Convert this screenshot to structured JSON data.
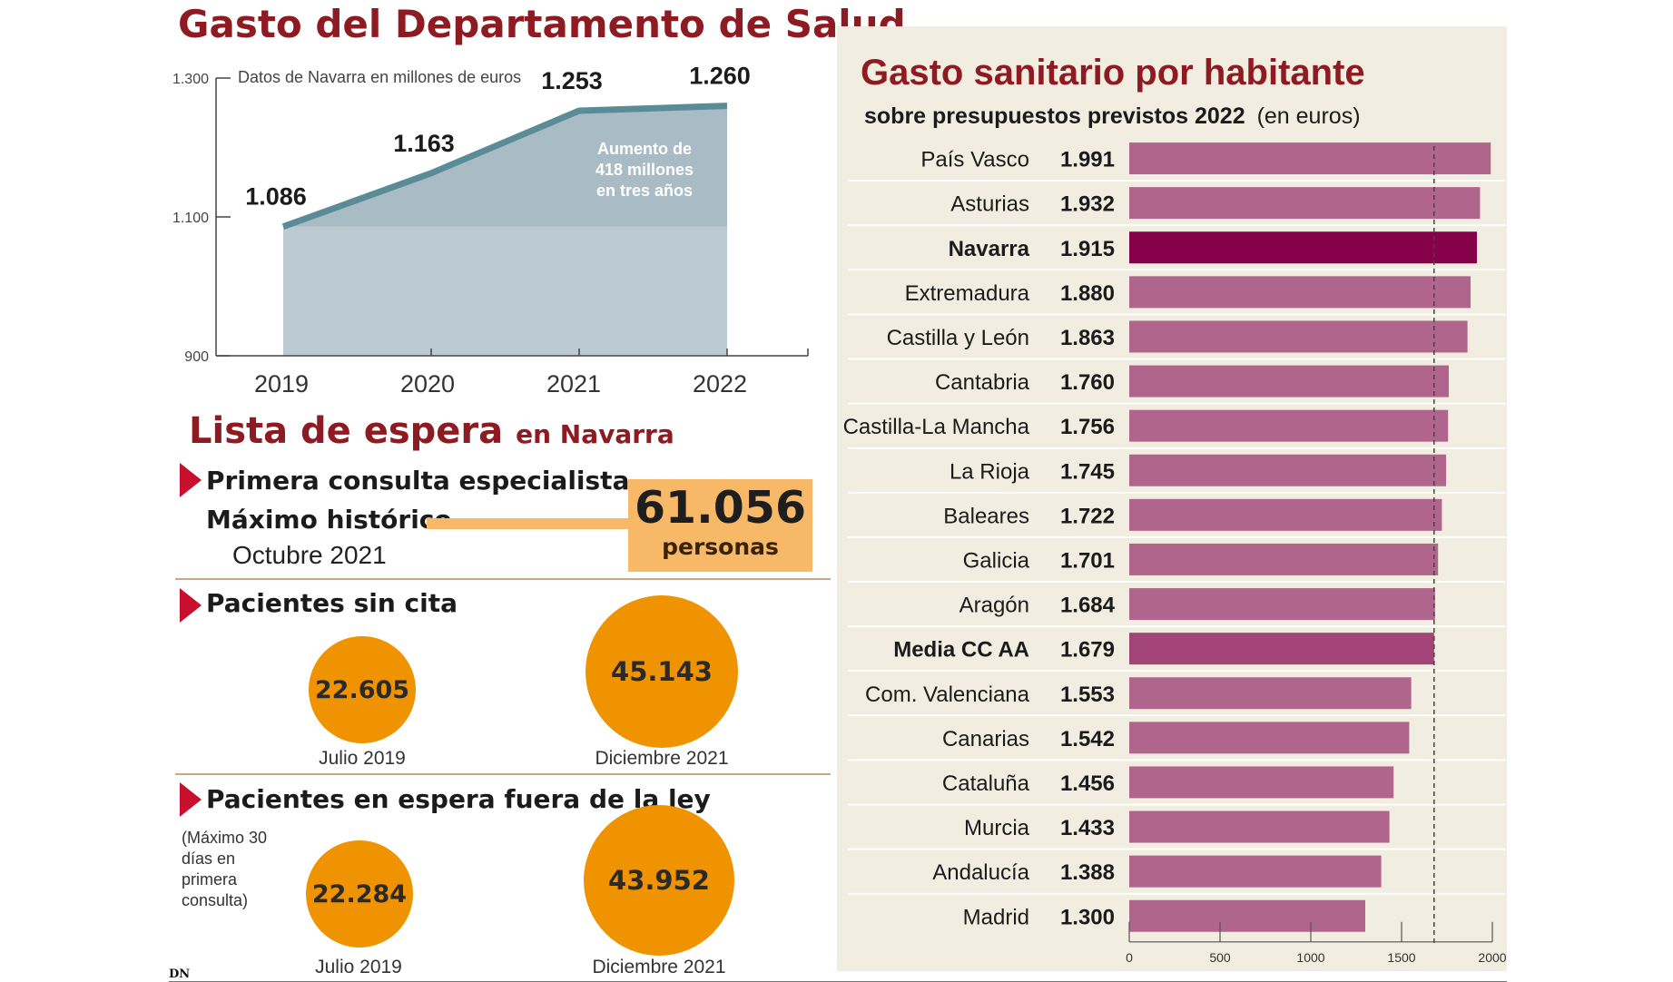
{
  "left": {
    "title": "Gasto del Departamento de Salud",
    "chart_subtitle": "Datos de Navarra en millones de euros",
    "annotation_lines": [
      "Aumento de",
      "418 millones",
      "en tres años"
    ]
  },
  "waiting": {
    "title": "Lista de espera",
    "title_suffix": "en Navarra",
    "first": {
      "heading": "Primera consulta especialista",
      "label": "Máximo histórico",
      "date": "Octubre 2021",
      "value": "61.056",
      "unit": "personas"
    },
    "no_appointment": {
      "heading": "Pacientes sin cita",
      "items": [
        {
          "value": "22.605",
          "caption": "Julio 2019"
        },
        {
          "value": "45.143",
          "caption": "Diciembre 2021"
        }
      ]
    },
    "out_of_law": {
      "heading": "Pacientes en espera fuera de la ley",
      "note_lines": [
        "(Máximo 30",
        "días en",
        "primera",
        "consulta)"
      ],
      "items": [
        {
          "value": "22.284",
          "caption": "Julio 2019"
        },
        {
          "value": "43.952",
          "caption": "Diciembre 2021"
        }
      ]
    }
  },
  "right": {
    "title": "Gasto sanitario por habitante",
    "subtitle": "sobre presupuestos previstos 2022",
    "subtitle_unit": "(en euros)"
  },
  "footer": {
    "logo": "DN"
  },
  "colors": {
    "title_red": "#8e1b22",
    "area_fill": "#bccbd2",
    "area_fill_top": "#a9bcc5",
    "line": "#5a8c97",
    "bar": "#b0668c",
    "bar_navarra": "#86004a",
    "bar_media": "#a34479",
    "orange": "#ef9400",
    "box_orange": "#f7b968",
    "triangle_red": "#c8102e",
    "panel_bg": "#f1ede0"
  },
  "chart_data": [
    {
      "type": "area",
      "title": "Gasto del Departamento de Salud",
      "subtitle": "Datos de Navarra en millones de euros",
      "categories": [
        "2019",
        "2020",
        "2021",
        "2022"
      ],
      "values": [
        1086,
        1163,
        1253,
        1260
      ],
      "value_labels": [
        "1.086",
        "1.163",
        "1.253",
        "1.260"
      ],
      "ylim": [
        900,
        1300
      ],
      "y_ticks": [
        900,
        1100,
        1300
      ],
      "y_tick_labels": [
        "900",
        "1.100",
        "1.300"
      ],
      "annotation": "Aumento de 418 millones en tres años"
    },
    {
      "type": "bar",
      "orientation": "horizontal",
      "title": "Gasto sanitario por habitante",
      "subtitle": "sobre presupuestos previstos 2022 (en euros)",
      "categories": [
        "País Vasco",
        "Asturias",
        "Navarra",
        "Extremadura",
        "Castilla y León",
        "Cantabria",
        "Castilla-La Mancha",
        "La Rioja",
        "Baleares",
        "Galicia",
        "Aragón",
        "Media CC AA",
        "Com. Valenciana",
        "Canarias",
        "Cataluña",
        "Murcia",
        "Andalucía",
        "Madrid"
      ],
      "values": [
        1991,
        1932,
        1915,
        1880,
        1863,
        1760,
        1756,
        1745,
        1722,
        1701,
        1684,
        1679,
        1553,
        1542,
        1456,
        1433,
        1388,
        1300
      ],
      "value_labels": [
        "1.991",
        "1.932",
        "1.915",
        "1.880",
        "1.863",
        "1.760",
        "1.756",
        "1.745",
        "1.722",
        "1.701",
        "1.684",
        "1.679",
        "1.553",
        "1.542",
        "1.456",
        "1.433",
        "1.388",
        "1.300"
      ],
      "highlighted": [
        "Navarra",
        "Media CC AA"
      ],
      "reference_line": 1679,
      "xlim": [
        0,
        2000
      ],
      "x_ticks": [
        0,
        500,
        1000,
        1500,
        2000
      ]
    }
  ]
}
